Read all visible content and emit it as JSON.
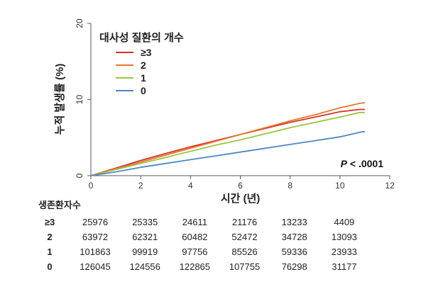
{
  "chart_data": {
    "type": "line",
    "title": "",
    "xlabel": "시간 (년)",
    "ylabel": "누적 발생률 (%)",
    "xlim": [
      0,
      12
    ],
    "ylim": [
      0,
      20
    ],
    "x_ticks": [
      "0",
      "2",
      "4",
      "6",
      "8",
      "10",
      "12"
    ],
    "y_ticks": [
      "0",
      "10",
      "20"
    ],
    "grid": false,
    "legend_title": "대사성 질환의 개수",
    "legend_position": "top-left",
    "annotation": {
      "p_italic": "P",
      "p_rest": " < .0001"
    },
    "series": [
      {
        "name": "≥3",
        "color": "#d9312a",
        "x": [
          0,
          1,
          2,
          3,
          4,
          5,
          6,
          7,
          8,
          9,
          10,
          10.8,
          11
        ],
        "y": [
          0,
          1.0,
          2.0,
          2.9,
          3.8,
          4.6,
          5.4,
          6.2,
          7.0,
          7.7,
          8.4,
          8.7,
          8.7
        ]
      },
      {
        "name": "2",
        "color": "#e8772a",
        "x": [
          0,
          1,
          2,
          3,
          4,
          5,
          6,
          7,
          8,
          9,
          10,
          10.8,
          11
        ],
        "y": [
          0,
          0.9,
          1.8,
          2.7,
          3.6,
          4.5,
          5.4,
          6.3,
          7.2,
          8.0,
          8.9,
          9.5,
          9.6
        ]
      },
      {
        "name": "1",
        "color": "#9bc53d",
        "x": [
          0,
          1,
          2,
          3,
          4,
          5,
          6,
          7,
          8,
          9,
          10,
          10.8,
          11
        ],
        "y": [
          0,
          0.8,
          1.6,
          2.4,
          3.2,
          4.0,
          4.7,
          5.5,
          6.3,
          7.0,
          7.7,
          8.3,
          8.3
        ]
      },
      {
        "name": "0",
        "color": "#4f86c6",
        "x": [
          0,
          1,
          2,
          3,
          4,
          5,
          6,
          7,
          8,
          9,
          10,
          10.8,
          11
        ],
        "y": [
          0,
          0.5,
          1.1,
          1.6,
          2.1,
          2.6,
          3.1,
          3.6,
          4.1,
          4.6,
          5.1,
          5.7,
          5.8
        ]
      }
    ],
    "risk_table": {
      "title": "생존환자수",
      "times": [
        0,
        2,
        4,
        6,
        8,
        10
      ],
      "rows": [
        {
          "label": "≥3",
          "values": [
            "25976",
            "25335",
            "24611",
            "21176",
            "13233",
            "4409"
          ]
        },
        {
          "label": "2",
          "values": [
            "63972",
            "62321",
            "60482",
            "52472",
            "34728",
            "13093"
          ]
        },
        {
          "label": "1",
          "values": [
            "101863",
            "99919",
            "97756",
            "85526",
            "59336",
            "23933"
          ]
        },
        {
          "label": "0",
          "values": [
            "126045",
            "124556",
            "122865",
            "107755",
            "76298",
            "31177"
          ]
        }
      ]
    }
  }
}
